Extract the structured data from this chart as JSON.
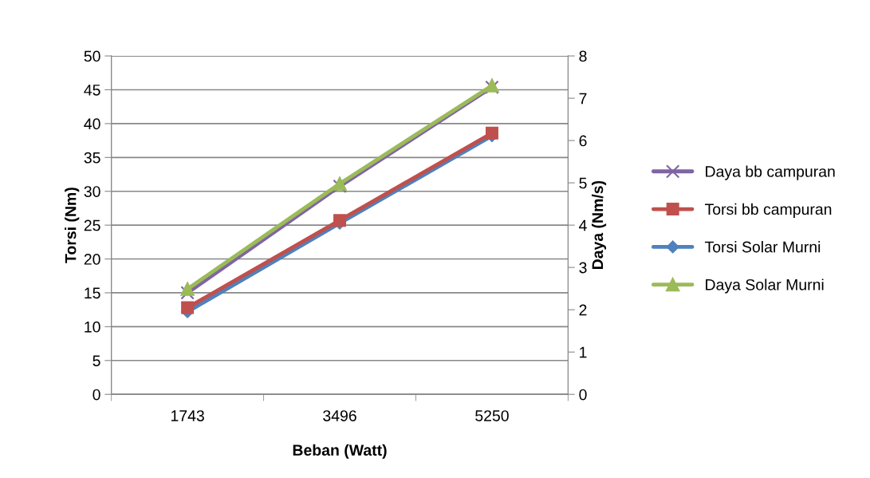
{
  "chart_data": {
    "type": "line",
    "xlabel": "Beban (Watt)",
    "ylabel": "Torsi (Nm)",
    "y2label": "Daya (Nm/s)",
    "categories": [
      "1743",
      "3496",
      "5250"
    ],
    "ylim": [
      0,
      50
    ],
    "yticks": [
      0,
      5,
      10,
      15,
      20,
      25,
      30,
      35,
      40,
      45,
      50
    ],
    "y2lim": [
      0,
      8
    ],
    "y2ticks": [
      0,
      1,
      2,
      3,
      4,
      5,
      6,
      7,
      8
    ],
    "grid": "y",
    "legend": "right",
    "line_style": "solid",
    "series": [
      {
        "name": "Daya bb campuran",
        "color": "#8064a2",
        "marker": "cross",
        "axis": "y2",
        "values": [
          2.4,
          4.92,
          7.26
        ]
      },
      {
        "name": "Torsi bb campuran",
        "color": "#c0504d",
        "marker": "square",
        "values": [
          12.8,
          25.7,
          38.6
        ]
      },
      {
        "name": "Torsi Solar Murni",
        "color": "#4f81bd",
        "marker": "diamond",
        "values": [
          12.2,
          25.3,
          38.2
        ]
      },
      {
        "name": "Daya Solar Murni",
        "color": "#9bbb59",
        "marker": "triangle",
        "axis": "y2",
        "values": [
          2.49,
          4.98,
          7.3
        ]
      }
    ]
  }
}
